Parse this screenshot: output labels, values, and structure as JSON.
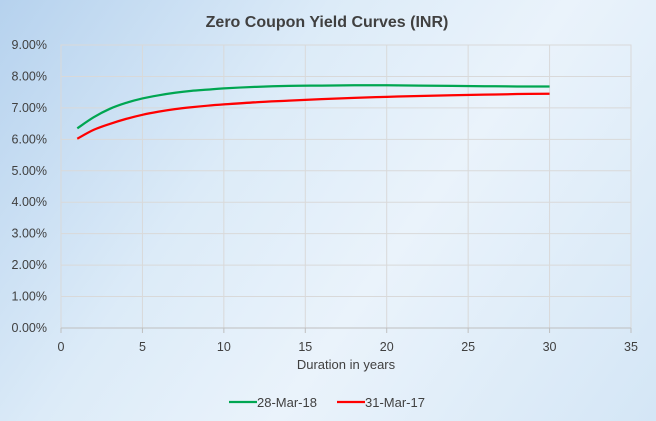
{
  "chart_data": {
    "type": "line",
    "title": "Zero Coupon Yield Curves (INR)",
    "xlabel": "Duration in years",
    "ylabel": "",
    "xlim": [
      0,
      35
    ],
    "ylim": [
      0,
      0.09
    ],
    "x_ticks": [
      "0",
      "5",
      "10",
      "15",
      "20",
      "25",
      "30",
      "35"
    ],
    "y_ticks": [
      "0.00%",
      "1.00%",
      "2.00%",
      "3.00%",
      "4.00%",
      "5.00%",
      "6.00%",
      "7.00%",
      "8.00%",
      "9.00%"
    ],
    "grid": true,
    "legend_position": "bottom",
    "series": [
      {
        "name": "28-Mar-18",
        "color": "#00a651",
        "x": [
          1,
          2,
          3,
          4,
          5,
          6,
          7,
          8,
          9,
          10,
          12,
          14,
          16,
          18,
          20,
          22,
          24,
          26,
          28,
          30
        ],
        "y": [
          0.0635,
          0.067,
          0.0697,
          0.0716,
          0.073,
          0.074,
          0.0748,
          0.0754,
          0.0758,
          0.0762,
          0.0767,
          0.077,
          0.0771,
          0.0772,
          0.0772,
          0.0771,
          0.077,
          0.0769,
          0.0768,
          0.0768
        ]
      },
      {
        "name": "31-Mar-17",
        "color": "#ff0000",
        "x": [
          1,
          2,
          3,
          4,
          5,
          6,
          7,
          8,
          9,
          10,
          12,
          14,
          16,
          18,
          20,
          22,
          24,
          26,
          28,
          30
        ],
        "y": [
          0.0602,
          0.063,
          0.0649,
          0.0665,
          0.0678,
          0.0688,
          0.0696,
          0.0702,
          0.0707,
          0.0711,
          0.0718,
          0.0723,
          0.0728,
          0.0732,
          0.0735,
          0.0738,
          0.074,
          0.0742,
          0.0744,
          0.0745
        ]
      }
    ]
  }
}
